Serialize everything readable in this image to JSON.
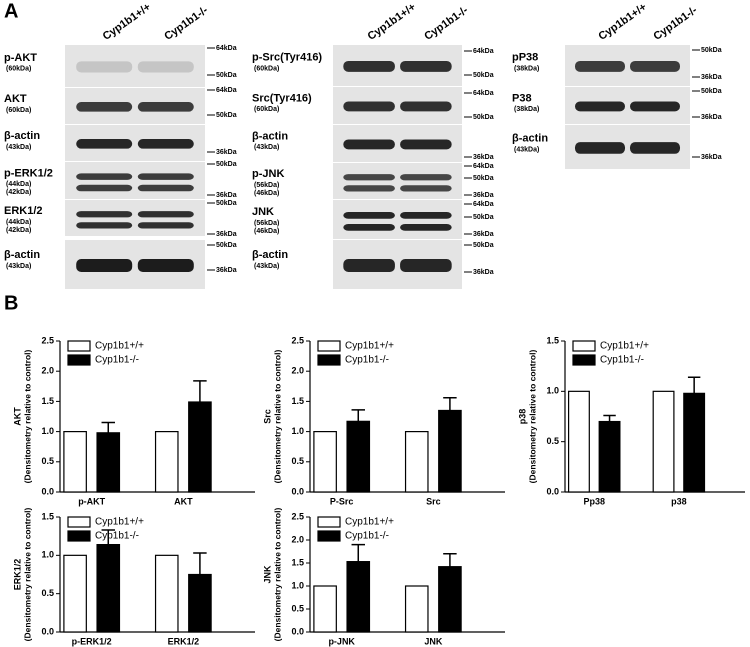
{
  "panel_labels": [
    "A",
    "B"
  ],
  "blots": [
    {
      "genotypes": [
        "Cyp1b1+/+",
        "Cyp1b1-/-"
      ],
      "rows": [
        {
          "label": "p-AKT",
          "sub": [
            "(60kDa)"
          ],
          "markers": [
            "64kDa",
            "50kDa"
          ]
        },
        {
          "label": "AKT",
          "sub": [
            "(60kDa)"
          ],
          "markers": [
            "64kDa",
            "50kDa"
          ]
        },
        {
          "label": "β-actin",
          "sub": [
            "(43kDa)"
          ],
          "markers": [
            "36kDa"
          ]
        },
        {
          "label": "p-ERK1/2",
          "sub": [
            "(44kDa)",
            "(42kDa)"
          ],
          "markers": [
            "50kDa",
            "36kDa"
          ]
        },
        {
          "label": "ERK1/2",
          "sub": [
            "(44kDa)",
            "(42kDa)"
          ],
          "markers": [
            "50kDa",
            "36kDa"
          ]
        },
        {
          "label": "β-actin",
          "sub": [
            "(43kDa)"
          ],
          "markers": [
            "50kDa",
            "36kDa"
          ]
        }
      ]
    },
    {
      "genotypes": [
        "Cyp1b1+/+",
        "Cyp1b1-/-"
      ],
      "rows": [
        {
          "label": "p-Src(Tyr416)",
          "sub": [
            "(60kDa)"
          ],
          "markers": [
            "64kDa",
            "50kDa"
          ]
        },
        {
          "label": "Src(Tyr416)",
          "sub": [
            "(60kDa)"
          ],
          "markers": [
            "64kDa",
            "50kDa"
          ]
        },
        {
          "label": "β-actin",
          "sub": [
            "(43kDa)"
          ],
          "markers": [
            "36kDa"
          ]
        },
        {
          "label": "p-JNK",
          "sub": [
            "(56kDa)",
            "(46kDa)"
          ],
          "markers": [
            "64kDa",
            "50kDa",
            "36kDa"
          ]
        },
        {
          "label": "JNK",
          "sub": [
            "(56kDa)",
            "(46kDa)"
          ],
          "markers": [
            "64kDa",
            "50kDa",
            "36kDa"
          ]
        },
        {
          "label": "β-actin",
          "sub": [
            "(43kDa)"
          ],
          "markers": [
            "50kDa",
            "36kDa"
          ]
        }
      ]
    },
    {
      "genotypes": [
        "Cyp1b1+/+",
        "Cyp1b1-/-"
      ],
      "rows": [
        {
          "label": "pP38",
          "sub": [
            "(38kDa)"
          ],
          "markers": [
            "50kDa",
            "36kDa"
          ]
        },
        {
          "label": "P38",
          "sub": [
            "(38kDa)"
          ],
          "markers": [
            "50kDa",
            "36kDa"
          ]
        },
        {
          "label": "β-actin",
          "sub": [
            "(43kDa)"
          ],
          "markers": [
            "36kDa"
          ]
        }
      ]
    }
  ],
  "chart_data": [
    {
      "type": "bar",
      "ylabel": [
        "AKT",
        "(Densitometry relative to control)"
      ],
      "categories": [
        "p-AKT",
        "AKT"
      ],
      "series": [
        {
          "name": "Cyp1b1+/+",
          "color": "#ffffff",
          "values": [
            1,
            1
          ]
        },
        {
          "name": "Cyp1b1-/-",
          "color": "#000000",
          "values": [
            0.98,
            1.49
          ],
          "errors": [
            0.17,
            0.35
          ]
        }
      ],
      "ylim": [
        0,
        2.5
      ],
      "yticks": [
        {
          "value": 0,
          "label": "0.0"
        },
        0.5,
        {
          "value": 1,
          "label": "1.0"
        },
        1.5,
        {
          "value": 2,
          "label": "2.0"
        },
        2.5
      ]
    },
    {
      "type": "bar",
      "ylabel": [
        "Src",
        "(Densitometry relative to control)"
      ],
      "categories": [
        "P-Src",
        "Src"
      ],
      "series": [
        {
          "name": "Cyp1b1+/+",
          "color": "#ffffff",
          "values": [
            1,
            1
          ]
        },
        {
          "name": "Cyp1b1-/-",
          "color": "#000000",
          "values": [
            1.17,
            1.35
          ],
          "errors": [
            0.19,
            0.21
          ]
        }
      ],
      "ylim": [
        0,
        2.5
      ],
      "yticks": [
        {
          "value": 0,
          "label": "0.0"
        },
        0.5,
        {
          "value": 1,
          "label": "1.0"
        },
        1.5,
        {
          "value": 2,
          "label": "2.0"
        },
        2.5
      ]
    },
    {
      "type": "bar",
      "ylabel": [
        "p38",
        "(Densitometry relative to control)"
      ],
      "categories": [
        "Pp38",
        "p38"
      ],
      "series": [
        {
          "name": "Cyp1b1+/+",
          "color": "#ffffff",
          "values": [
            1,
            1
          ]
        },
        {
          "name": "Cyp1b1-/-",
          "color": "#000000",
          "values": [
            0.7,
            0.98
          ],
          "errors": [
            0.06,
            0.16
          ]
        }
      ],
      "ylim": [
        0,
        1.5
      ],
      "yticks": [
        {
          "value": 0,
          "label": "0.0"
        },
        0.5,
        {
          "value": 1,
          "label": "1.0"
        },
        1.5
      ]
    },
    {
      "type": "bar",
      "ylabel": [
        "ERK1/2",
        "(Densitometry relative to control)"
      ],
      "categories": [
        "p-ERK1/2",
        "ERK1/2"
      ],
      "series": [
        {
          "name": "Cyp1b1+/+",
          "color": "#ffffff",
          "values": [
            1,
            1
          ]
        },
        {
          "name": "Cyp1b1-/-",
          "color": "#000000",
          "values": [
            1.14,
            0.75
          ],
          "errors": [
            0.19,
            0.28
          ]
        }
      ],
      "ylim": [
        0,
        1.5
      ],
      "yticks": [
        {
          "value": 0,
          "label": "0.0"
        },
        0.5,
        {
          "value": 1,
          "label": "1.0"
        },
        1.5
      ]
    },
    {
      "type": "bar",
      "ylabel": [
        "JNK",
        "(Densitometry relative to control)"
      ],
      "categories": [
        "p-JNK",
        "JNK"
      ],
      "series": [
        {
          "name": "Cyp1b1+/+",
          "color": "#ffffff",
          "values": [
            1,
            1
          ]
        },
        {
          "name": "Cyp1b1-/-",
          "color": "#000000",
          "values": [
            1.53,
            1.42
          ],
          "errors": [
            0.37,
            0.28
          ]
        }
      ],
      "ylim": [
        0,
        2.5
      ],
      "yticks": [
        {
          "value": 0,
          "label": "0.0"
        },
        0.5,
        {
          "value": 1,
          "label": "1.0"
        },
        1.5,
        {
          "value": 2,
          "label": "2.0"
        },
        2.5
      ]
    }
  ]
}
